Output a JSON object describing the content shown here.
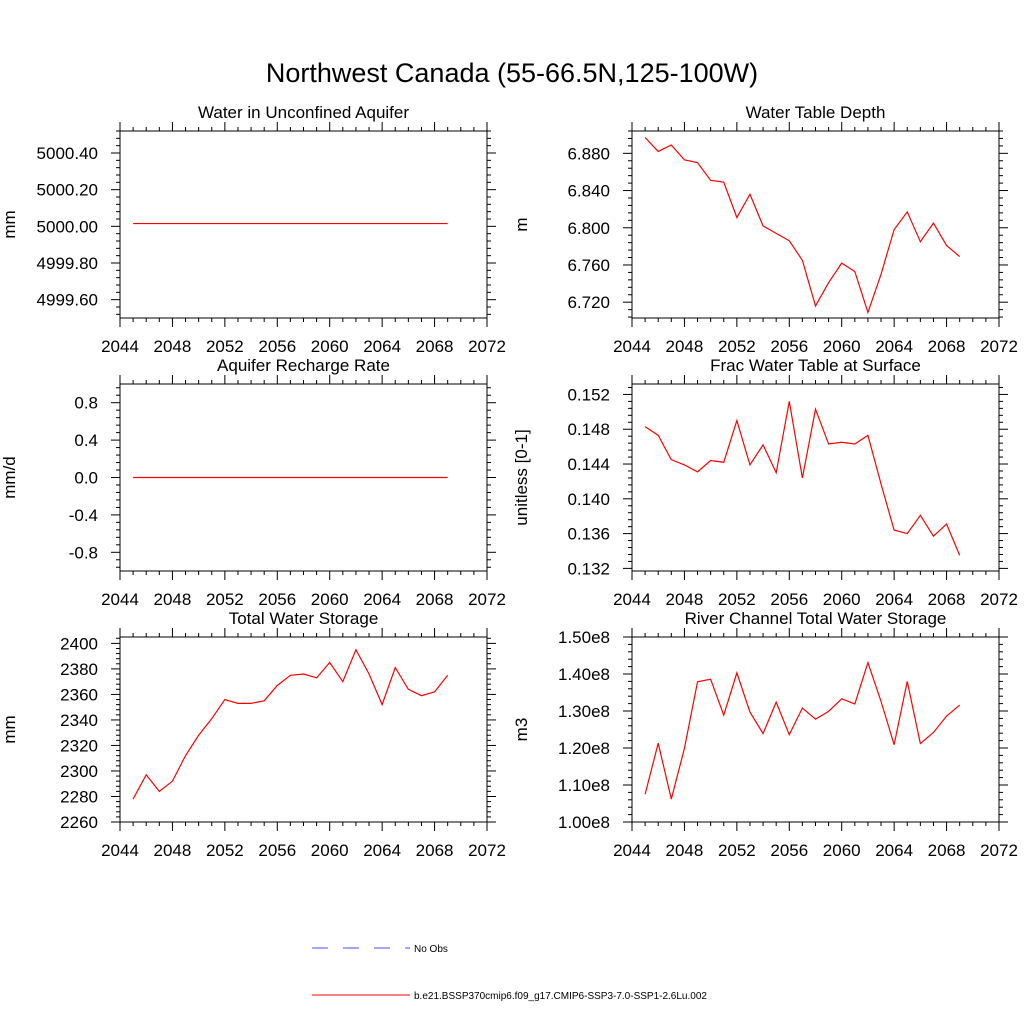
{
  "page": {
    "title": "Northwest Canada (55-66.5N,125-100W)"
  },
  "colors": {
    "model": "#ff0000",
    "obs": "#4b4bff",
    "axis": "#000000"
  },
  "legend": {
    "placement": "bottom-center",
    "items": [
      {
        "label": "No Obs",
        "style": "dashed",
        "color": "#4b4bff"
      },
      {
        "label": "b.e21.BSSP370cmip6.f09_g17.CMIP6-SSP3-7.0-SSP1-2.6Lu.002",
        "style": "solid",
        "color": "#ff0000"
      }
    ]
  },
  "chart_data": [
    {
      "type": "line",
      "title": "Water in Unconfined Aquifer",
      "ylabel": "mm",
      "xlim": [
        2044,
        2072
      ],
      "ylim": [
        4999.5,
        5000.52
      ],
      "xticks": [
        2044,
        2048,
        2052,
        2056,
        2060,
        2064,
        2068,
        2072
      ],
      "yticks": [
        4999.6,
        4999.8,
        5000.0,
        5000.2,
        5000.4
      ],
      "ytick_labels": [
        "4999.60",
        "4999.80",
        "5000.00",
        "5000.20",
        "5000.40"
      ],
      "series": [
        {
          "x": [
            2045,
            2046,
            2047,
            2048,
            2049,
            2050,
            2051,
            2052,
            2053,
            2054,
            2055,
            2056,
            2057,
            2058,
            2059,
            2060,
            2061,
            2062,
            2063,
            2064,
            2065,
            2066,
            2067,
            2068,
            2069
          ],
          "values": [
            5000.015,
            5000.015,
            5000.015,
            5000.015,
            5000.015,
            5000.015,
            5000.015,
            5000.015,
            5000.015,
            5000.015,
            5000.015,
            5000.015,
            5000.015,
            5000.015,
            5000.015,
            5000.015,
            5000.015,
            5000.015,
            5000.015,
            5000.015,
            5000.015,
            5000.015,
            5000.015,
            5000.015,
            5000.015
          ]
        }
      ]
    },
    {
      "type": "line",
      "title": "Water Table Depth",
      "ylabel": "m",
      "xlim": [
        2044,
        2072
      ],
      "ylim": [
        6.703,
        6.904
      ],
      "xticks": [
        2044,
        2048,
        2052,
        2056,
        2060,
        2064,
        2068,
        2072
      ],
      "yticks": [
        6.72,
        6.76,
        6.8,
        6.84,
        6.88
      ],
      "ytick_labels": [
        "6.720",
        "6.760",
        "6.800",
        "6.840",
        "6.880"
      ],
      "series": [
        {
          "x": [
            2045,
            2046,
            2047,
            2048,
            2049,
            2050,
            2051,
            2052,
            2053,
            2054,
            2055,
            2056,
            2057,
            2058,
            2059,
            2060,
            2061,
            2062,
            2063,
            2064,
            2065,
            2066,
            2067,
            2068,
            2069
          ],
          "values": [
            6.897,
            6.882,
            6.889,
            6.873,
            6.87,
            6.851,
            6.849,
            6.811,
            6.836,
            6.802,
            6.794,
            6.786,
            6.765,
            6.716,
            6.741,
            6.762,
            6.753,
            6.709,
            6.75,
            6.798,
            6.817,
            6.785,
            6.805,
            6.781,
            6.769
          ]
        }
      ]
    },
    {
      "type": "line",
      "title": "Aquifer Recharge Rate",
      "ylabel": "mm/d",
      "xlim": [
        2044,
        2072
      ],
      "ylim": [
        -1.0,
        1.0
      ],
      "xticks": [
        2044,
        2048,
        2052,
        2056,
        2060,
        2064,
        2068,
        2072
      ],
      "yticks": [
        -0.8,
        -0.4,
        0.0,
        0.4,
        0.8
      ],
      "ytick_labels": [
        "-0.8",
        "-0.4",
        "0.0",
        "0.4",
        "0.8"
      ],
      "series": [
        {
          "x": [
            2045,
            2046,
            2047,
            2048,
            2049,
            2050,
            2051,
            2052,
            2053,
            2054,
            2055,
            2056,
            2057,
            2058,
            2059,
            2060,
            2061,
            2062,
            2063,
            2064,
            2065,
            2066,
            2067,
            2068,
            2069
          ],
          "values": [
            0.0,
            0.0,
            0.0,
            0.0,
            0.0,
            0.0,
            0.0,
            0.0,
            0.0,
            0.0,
            0.0,
            0.0,
            0.0,
            0.0,
            0.0,
            0.0,
            0.0,
            0.0,
            0.0,
            0.0,
            0.0,
            0.0,
            0.0,
            0.0,
            0.0
          ]
        }
      ]
    },
    {
      "type": "line",
      "title": "Frac Water Table at Surface",
      "ylabel": "unitless [0-1]",
      "xlim": [
        2044,
        2072
      ],
      "ylim": [
        0.1317,
        0.1532
      ],
      "xticks": [
        2044,
        2048,
        2052,
        2056,
        2060,
        2064,
        2068,
        2072
      ],
      "yticks": [
        0.132,
        0.136,
        0.14,
        0.144,
        0.148,
        0.152
      ],
      "ytick_labels": [
        "0.132",
        "0.136",
        "0.140",
        "0.144",
        "0.148",
        "0.152"
      ],
      "series": [
        {
          "x": [
            2045,
            2046,
            2047,
            2048,
            2049,
            2050,
            2051,
            2052,
            2053,
            2054,
            2055,
            2056,
            2057,
            2058,
            2059,
            2060,
            2061,
            2062,
            2063,
            2064,
            2065,
            2066,
            2067,
            2068,
            2069
          ],
          "values": [
            0.1483,
            0.1473,
            0.1445,
            0.1439,
            0.1431,
            0.1444,
            0.1442,
            0.149,
            0.1439,
            0.1462,
            0.143,
            0.1512,
            0.1424,
            0.1503,
            0.1463,
            0.1465,
            0.1463,
            0.1473,
            0.1417,
            0.1364,
            0.136,
            0.1381,
            0.1357,
            0.1371,
            0.1335
          ]
        }
      ]
    },
    {
      "type": "line",
      "title": "Total Water Storage",
      "ylabel": "mm",
      "xlim": [
        2044,
        2072
      ],
      "ylim": [
        2260,
        2405
      ],
      "xticks": [
        2044,
        2048,
        2052,
        2056,
        2060,
        2064,
        2068,
        2072
      ],
      "yticks": [
        2260,
        2280,
        2300,
        2320,
        2340,
        2360,
        2380,
        2400
      ],
      "ytick_labels": [
        "2260",
        "2280",
        "2300",
        "2320",
        "2340",
        "2360",
        "2380",
        "2400"
      ],
      "series": [
        {
          "x": [
            2045,
            2046,
            2047,
            2048,
            2049,
            2050,
            2051,
            2052,
            2053,
            2054,
            2055,
            2056,
            2057,
            2058,
            2059,
            2060,
            2061,
            2062,
            2063,
            2064,
            2065,
            2066,
            2067,
            2068,
            2069
          ],
          "values": [
            2278,
            2297,
            2284,
            2292,
            2312,
            2328,
            2341,
            2356,
            2353,
            2353,
            2355,
            2367,
            2375,
            2376,
            2373,
            2385,
            2370,
            2395,
            2376,
            2352,
            2381,
            2364,
            2359,
            2362,
            2375
          ]
        }
      ]
    },
    {
      "type": "line",
      "title": "River Channel Total Water Storage",
      "ylabel": "m3",
      "xlim": [
        2044,
        2072
      ],
      "ylim": [
        100000000,
        150000000
      ],
      "xticks": [
        2044,
        2048,
        2052,
        2056,
        2060,
        2064,
        2068,
        2072
      ],
      "yticks": [
        100000000,
        110000000,
        120000000,
        130000000,
        140000000,
        150000000
      ],
      "ytick_labels": [
        "1.00e8",
        "1.10e8",
        "1.20e8",
        "1.30e8",
        "1.40e8",
        "1.50e8"
      ],
      "series": [
        {
          "x": [
            2045,
            2046,
            2047,
            2048,
            2049,
            2050,
            2051,
            2052,
            2053,
            2054,
            2055,
            2056,
            2057,
            2058,
            2059,
            2060,
            2061,
            2062,
            2063,
            2064,
            2065,
            2066,
            2067,
            2068,
            2069
          ],
          "values": [
            107500000,
            121300000,
            106200000,
            119900000,
            137900000,
            138600000,
            128900000,
            140300000,
            129700000,
            123900000,
            132400000,
            123600000,
            130800000,
            127800000,
            129900000,
            133300000,
            131900000,
            143100000,
            132600000,
            120900000,
            138000000,
            121200000,
            124200000,
            128600000,
            131600000
          ]
        }
      ]
    }
  ]
}
